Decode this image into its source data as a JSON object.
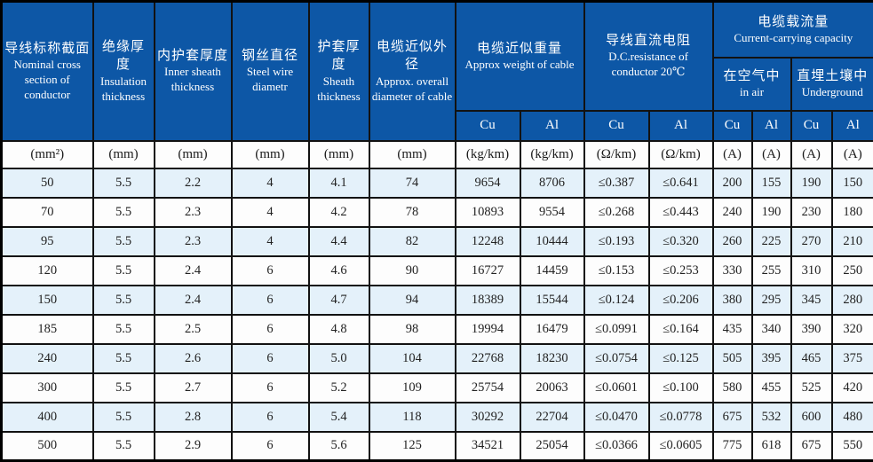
{
  "colors": {
    "header_blue": "#0d57a6",
    "row_alt_blue": "#e4f1fa",
    "row_white": "#fdfdfd",
    "border_black": "#121212",
    "header_text": "#ffffff",
    "body_text": "#222222"
  },
  "header": {
    "nominal_cross_section": {
      "zh": "导线标称截面",
      "en": "Nominal cross section of conductor"
    },
    "insulation_thickness": {
      "zh": "绝缘厚度",
      "en": "Insulation thickness"
    },
    "inner_sheath_thickness": {
      "zh": "内护套厚度",
      "en": "Inner sheath thickness"
    },
    "steel_wire_diameter": {
      "zh": "钢丝直径",
      "en": "Steel wire diametr"
    },
    "sheath_thickness": {
      "zh": "护套厚度",
      "en": "Sheath thickness"
    },
    "approx_overall_diameter": {
      "zh": "电缆近似外径",
      "en": "Approx. overall diameter of cable"
    },
    "approx_weight": {
      "zh": "电缆近似重量",
      "en": "Approx weight of cable"
    },
    "dc_resistance": {
      "zh": "导线直流电阻",
      "en": "D.C.resistance of conductor 20℃"
    },
    "current_capacity": {
      "zh": "电缆载流量",
      "en": "Current-carrying capacity"
    },
    "in_air": {
      "zh": "在空气中",
      "en": "in air"
    },
    "underground": {
      "zh": "直埋土壤中",
      "en": "Underground"
    },
    "conductor_row": [
      "Cu",
      "Al",
      "Cu",
      "Al",
      "Cu",
      "Al",
      "Cu",
      "Al"
    ],
    "units_row": [
      "(mm²)",
      "(mm)",
      "(mm)",
      "(mm)",
      "(mm)",
      "(mm)",
      "(kg/km)",
      "(kg/km)",
      "(Ω/km)",
      "(Ω/km)",
      "(A)",
      "(A)",
      "(A)",
      "(A)"
    ]
  },
  "rows": [
    [
      "50",
      "5.5",
      "2.2",
      "4",
      "4.1",
      "74",
      "9654",
      "8706",
      "≤0.387",
      "≤0.641",
      "200",
      "155",
      "190",
      "150"
    ],
    [
      "70",
      "5.5",
      "2.3",
      "4",
      "4.2",
      "78",
      "10893",
      "9554",
      "≤0.268",
      "≤0.443",
      "240",
      "190",
      "230",
      "180"
    ],
    [
      "95",
      "5.5",
      "2.3",
      "4",
      "4.4",
      "82",
      "12248",
      "10444",
      "≤0.193",
      "≤0.320",
      "260",
      "225",
      "270",
      "210"
    ],
    [
      "120",
      "5.5",
      "2.4",
      "6",
      "4.6",
      "90",
      "16727",
      "14459",
      "≤0.153",
      "≤0.253",
      "330",
      "255",
      "310",
      "250"
    ],
    [
      "150",
      "5.5",
      "2.4",
      "6",
      "4.7",
      "94",
      "18389",
      "15544",
      "≤0.124",
      "≤0.206",
      "380",
      "295",
      "345",
      "280"
    ],
    [
      "185",
      "5.5",
      "2.5",
      "6",
      "4.8",
      "98",
      "19994",
      "16479",
      "≤0.0991",
      "≤0.164",
      "435",
      "340",
      "390",
      "320"
    ],
    [
      "240",
      "5.5",
      "2.6",
      "6",
      "5.0",
      "104",
      "22768",
      "18230",
      "≤0.0754",
      "≤0.125",
      "505",
      "395",
      "465",
      "375"
    ],
    [
      "300",
      "5.5",
      "2.7",
      "6",
      "5.2",
      "109",
      "25754",
      "20063",
      "≤0.0601",
      "≤0.100",
      "580",
      "455",
      "525",
      "420"
    ],
    [
      "400",
      "5.5",
      "2.8",
      "6",
      "5.4",
      "118",
      "30292",
      "22704",
      "≤0.0470",
      "≤0.0778",
      "675",
      "532",
      "600",
      "480"
    ],
    [
      "500",
      "5.5",
      "2.9",
      "6",
      "5.6",
      "125",
      "34521",
      "25054",
      "≤0.0366",
      "≤0.0605",
      "775",
      "618",
      "675",
      "550"
    ]
  ]
}
